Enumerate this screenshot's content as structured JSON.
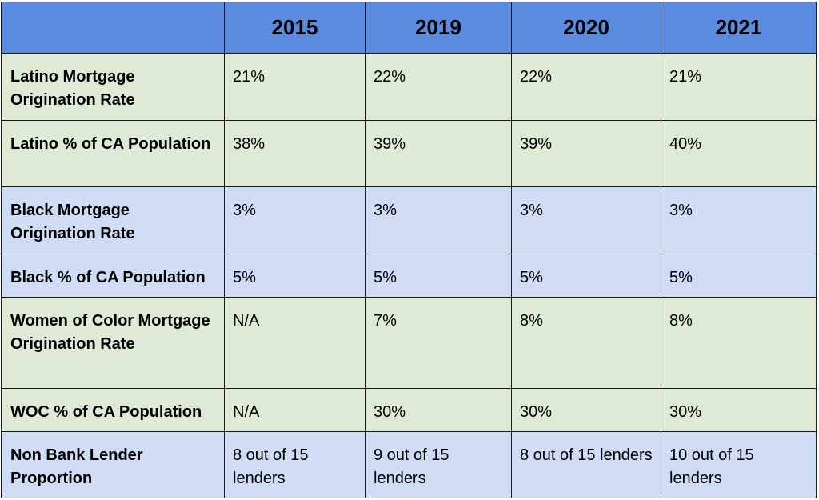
{
  "table": {
    "header": [
      "",
      "2015",
      "2019",
      "2020",
      "2021"
    ],
    "rows": [
      {
        "label": "Latino Mortgage Origination Rate",
        "values": [
          "21%",
          "22%",
          "22%",
          "21%"
        ],
        "color": "#deead6"
      },
      {
        "label": "Latino % of CA Population",
        "values": [
          "38%",
          "39%",
          "39%",
          "40%"
        ],
        "color": "#deead6"
      },
      {
        "label": "Black Mortgage Origination Rate",
        "values": [
          "3%",
          "3%",
          "3%",
          "3%"
        ],
        "color": "#cfdcf3"
      },
      {
        "label": "Black % of CA Population",
        "values": [
          "5%",
          "5%",
          "5%",
          "5%"
        ],
        "color": "#cfdcf3"
      },
      {
        "label": "Women of Color Mortgage Origination Rate",
        "values": [
          "N/A",
          "7%",
          "8%",
          "8%"
        ],
        "color": "#deead6"
      },
      {
        "label": "WOC % of CA Population",
        "values": [
          "N/A",
          "30%",
          "30%",
          "30%"
        ],
        "color": "#deead6"
      },
      {
        "label": "Non Bank Lender Proportion",
        "values": [
          "8 out of 15 lenders",
          "9 out of 15 lenders",
          "8 out of 15 lenders",
          "10 out of 15 lenders"
        ],
        "color": "#cfdcf3"
      }
    ],
    "header_color": "#5a8bdf"
  }
}
